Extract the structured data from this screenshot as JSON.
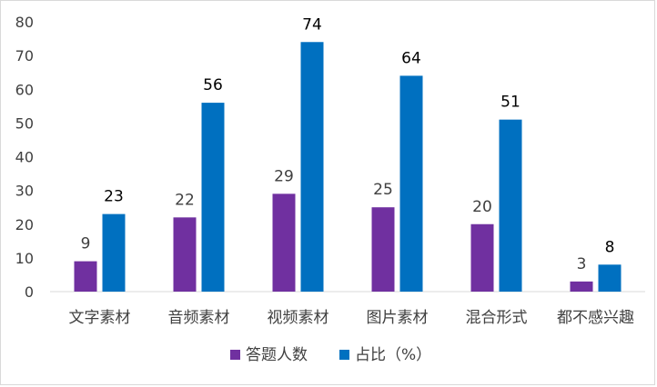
{
  "chart_data": {
    "type": "bar",
    "title": "",
    "xlabel": "",
    "ylabel": "",
    "ylim": [
      0,
      80
    ],
    "yticks": [
      0,
      10,
      20,
      30,
      40,
      50,
      60,
      70,
      80
    ],
    "grid": false,
    "legend_position": "bottom",
    "categories": [
      "文字素材",
      "音频素材",
      "视频素材",
      "图片素材",
      "混合形式",
      "都不感兴趣"
    ],
    "series": [
      {
        "name": "答题人数",
        "color": "#7030a0",
        "label_color": "#404040",
        "values": [
          9,
          22,
          29,
          25,
          20,
          3
        ]
      },
      {
        "name": "占比（%）",
        "color": "#0070c0",
        "label_color": "#000000",
        "values": [
          23,
          56,
          74,
          64,
          51,
          8
        ]
      }
    ]
  }
}
